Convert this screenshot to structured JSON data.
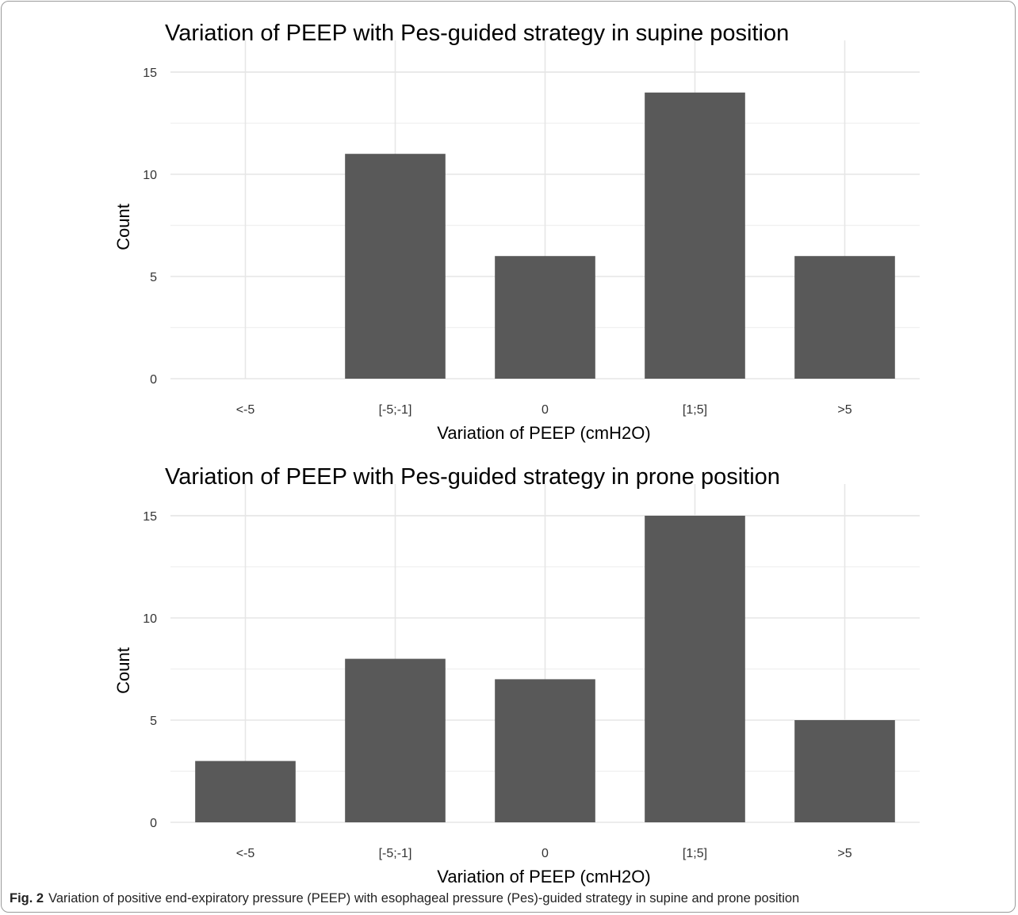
{
  "chart_data": [
    {
      "type": "bar",
      "title": "Variation of PEEP with Pes-guided strategy in supine position",
      "xlabel": "Variation of PEEP (cmH2O)",
      "ylabel": "Count",
      "categories": [
        "<-5",
        "[-5;-1]",
        "0",
        "[1;5]",
        ">5"
      ],
      "values": [
        0,
        11,
        6,
        14,
        6
      ],
      "ylim": [
        0,
        15
      ],
      "yticks": [
        0,
        5,
        10,
        15
      ],
      "grid": true,
      "bar_color": "#595959"
    },
    {
      "type": "bar",
      "title": "Variation of PEEP with Pes-guided strategy in prone position",
      "xlabel": "Variation of PEEP (cmH2O)",
      "ylabel": "Count",
      "categories": [
        "<-5",
        "[-5;-1]",
        "0",
        "[1;5]",
        ">5"
      ],
      "values": [
        3,
        8,
        7,
        15,
        5
      ],
      "ylim": [
        0,
        15
      ],
      "yticks": [
        0,
        5,
        10,
        15
      ],
      "grid": true,
      "bar_color": "#595959"
    }
  ],
  "caption": {
    "label": "Fig. 2",
    "text": "Variation of positive end-expiratory pressure (PEEP) with esophageal pressure (Pes)-guided strategy in supine and prone position"
  }
}
